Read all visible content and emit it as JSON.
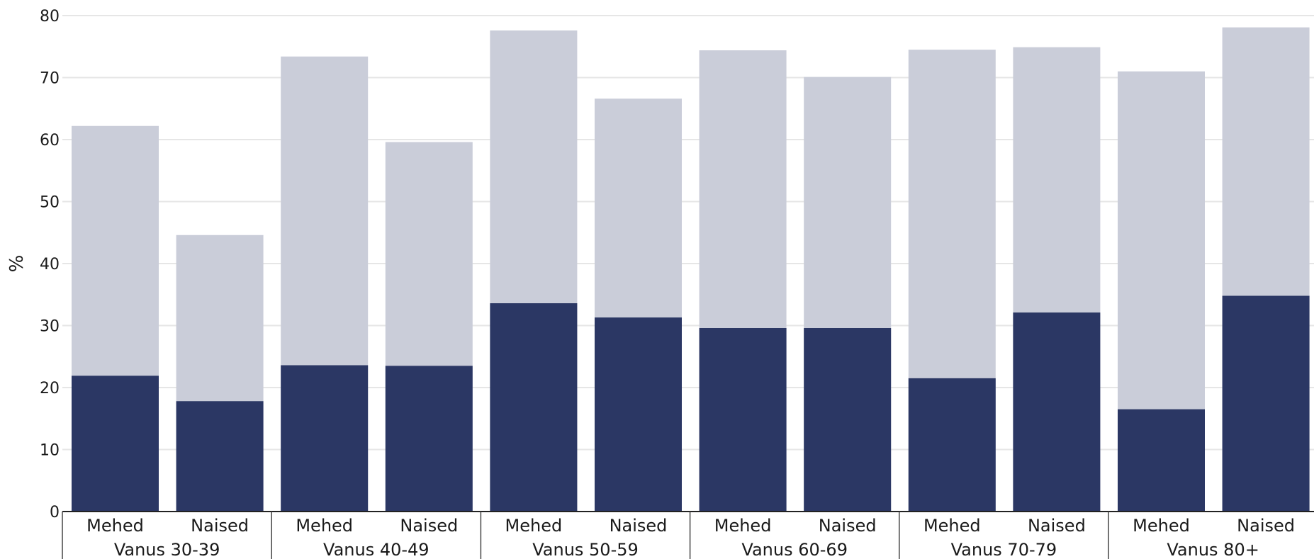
{
  "chart_data": {
    "type": "bar",
    "stacked": false,
    "overlapping_bars": true,
    "ylabel": "%",
    "ylim": [
      0,
      80
    ],
    "yticks": [
      0,
      10,
      20,
      30,
      40,
      50,
      60,
      70,
      80
    ],
    "grid": true,
    "legend": "none",
    "groups": [
      "Vanus 30-39",
      "Vanus 40-49",
      "Vanus 50-59",
      "Vanus 60-69",
      "Vanus 70-79",
      "Vanus 80+"
    ],
    "subcategories": [
      "Mehed",
      "Naised"
    ],
    "categories": [
      {
        "group": "Vanus 30-39",
        "label": "Mehed"
      },
      {
        "group": "Vanus 30-39",
        "label": "Naised"
      },
      {
        "group": "Vanus 40-49",
        "label": "Mehed"
      },
      {
        "group": "Vanus 40-49",
        "label": "Naised"
      },
      {
        "group": "Vanus 50-59",
        "label": "Mehed"
      },
      {
        "group": "Vanus 50-59",
        "label": "Naised"
      },
      {
        "group": "Vanus 60-69",
        "label": "Mehed"
      },
      {
        "group": "Vanus 60-69",
        "label": "Naised"
      },
      {
        "group": "Vanus 70-79",
        "label": "Mehed"
      },
      {
        "group": "Vanus 70-79",
        "label": "Naised"
      },
      {
        "group": "Vanus 80+",
        "label": "Mehed"
      },
      {
        "group": "Vanus 80+",
        "label": "Naised"
      }
    ],
    "series": [
      {
        "color": "#cacdd9",
        "values": [
          62.2,
          44.6,
          73.4,
          59.6,
          77.6,
          66.6,
          74.4,
          70.1,
          74.5,
          74.9,
          71.0,
          78.1
        ]
      },
      {
        "color": "#2b3764",
        "values": [
          21.9,
          17.8,
          23.6,
          23.5,
          33.6,
          31.3,
          29.6,
          29.6,
          21.5,
          32.1,
          16.5,
          34.8
        ]
      }
    ],
    "grid_color": "#e6e6e6",
    "axis_color": "#222222"
  }
}
